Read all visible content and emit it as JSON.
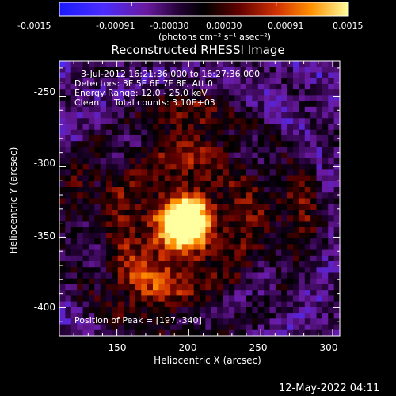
{
  "colorbar": {
    "tick_labels": [
      "-0.0015",
      "-0.00091",
      "-0.00030",
      "0.00030",
      "0.00091",
      "0.0015"
    ],
    "unit_label": "(photons cm⁻² s⁻¹ asec⁻²)",
    "range": [
      -0.0015,
      0.0015
    ]
  },
  "chart_data": {
    "type": "heatmap",
    "title": "Reconstructed RHESSI Image",
    "xlabel": "Heliocentric X (arcsec)",
    "ylabel": "Heliocentric Y (arcsec)",
    "xlim": [
      110,
      305
    ],
    "ylim": [
      -420,
      -225
    ],
    "xticks": [
      150,
      200,
      250,
      300
    ],
    "yticks": [
      -250,
      -300,
      -350,
      -400
    ],
    "annotations": [
      "3-Jul-2012 16:21:36.000 to 16:27:36.000",
      "Detectors: 3F 5F 6F 7F 8F, Att 0",
      "Energy Range: 12.0 - 25.0 keV",
      "Clean",
      "Total counts: 3.10E+03"
    ],
    "peak_label": "Position of Peak = [197,-340]",
    "peak": [
      197,
      -340
    ]
  },
  "footer": {
    "timestamp": "12-May-2022 04:11"
  }
}
